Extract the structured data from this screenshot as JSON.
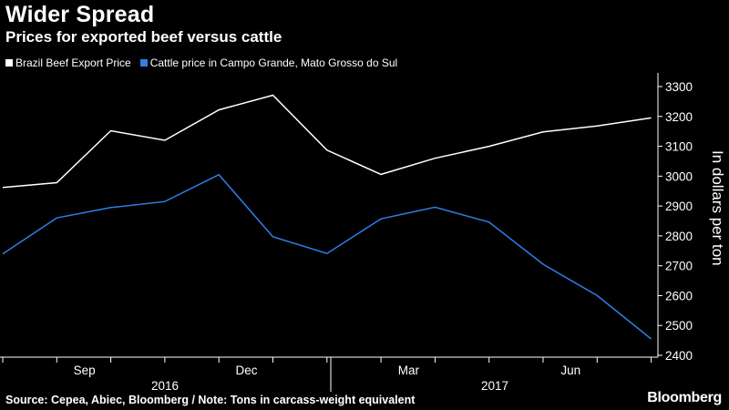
{
  "header": {
    "title": "Wider Spread",
    "subtitle": "Prices for exported beef versus cattle"
  },
  "footer": {
    "source": "Source: Cepea, Abiec, Bloomberg / Note: Tons in carcass-weight equivalent",
    "brand": "Bloomberg"
  },
  "colors": {
    "background": "#000000",
    "beef": "#ffffff",
    "cattle": "#2e7fe6",
    "axis": "#ffffff",
    "grid": "#2f2f2f"
  },
  "chart_data": {
    "type": "line",
    "x": [
      "2016-07",
      "2016-08",
      "2016-09",
      "2016-10",
      "2016-11",
      "2016-12",
      "2017-01",
      "2017-02",
      "2017-03",
      "2017-04",
      "2017-05",
      "2017-06",
      "2017-07"
    ],
    "series": [
      {
        "name": "Brazil Beef Export Price",
        "color": "#ffffff",
        "values": [
          2962,
          2978,
          3152,
          3120,
          3222,
          3271,
          3087,
          3006,
          3060,
          3100,
          3148,
          3168,
          3195
        ]
      },
      {
        "name": "Cattle price in Campo Grande, Mato Grosso do Sul",
        "color": "#2e7fe6",
        "values": [
          2740,
          2860,
          2895,
          2915,
          3005,
          2797,
          2741,
          2857,
          2896,
          2846,
          2705,
          2600,
          2455
        ]
      }
    ],
    "ylabel": "In dollars per ton",
    "ylim": [
      2400,
      3300
    ],
    "yticks": [
      2400,
      2500,
      2600,
      2700,
      2800,
      2900,
      3000,
      3100,
      3200,
      3300
    ],
    "xtick_labels": [
      "Sep",
      "Dec",
      "Mar",
      "Jun"
    ],
    "year_labels": [
      "2016",
      "2017"
    ],
    "grid": false,
    "legend_position": "top-left"
  }
}
